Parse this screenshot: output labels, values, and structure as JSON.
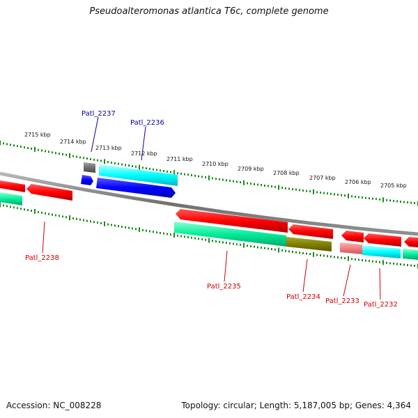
{
  "title": "Pseudoalteromonas atlantica T6c, complete genome",
  "footer": {
    "accession": "Accession: NC_008228",
    "summary": "Topology: circular; Length: 5,187,005 bp; Genes: 4,364"
  },
  "colors": {
    "backbone": "#808080",
    "tick_green": "#1a8a1a",
    "red_gene": "#ff0000",
    "cyan_gene": "#00ffff",
    "green_gene": "#00ee99",
    "olive_gene": "#808000",
    "blue_gene": "#0000ff",
    "gray_gene": "#707070",
    "pink_gene": "#f08080",
    "blue_label": "#000099",
    "red_label": "#cc0000"
  },
  "scale_labels": [
    "2715 kbp",
    "2714 kbp",
    "2713 kbp",
    "2712 kbp",
    "2711 kbp",
    "2710 kbp",
    "2709 kbp",
    "2708 kbp",
    "2707 kbp",
    "2706 kbp",
    "2705 kbp"
  ],
  "gene_labels": [
    {
      "text": "Patl_2237",
      "color": "blue_label"
    },
    {
      "text": "Patl_2236",
      "color": "blue_label"
    },
    {
      "text": "Patl_2238",
      "color": "red_label"
    },
    {
      "text": "Patl_2235",
      "color": "red_label"
    },
    {
      "text": "Patl_2234",
      "color": "red_label"
    },
    {
      "text": "Patl_2233",
      "color": "red_label"
    },
    {
      "text": "Patl_2232",
      "color": "red_label"
    }
  ]
}
